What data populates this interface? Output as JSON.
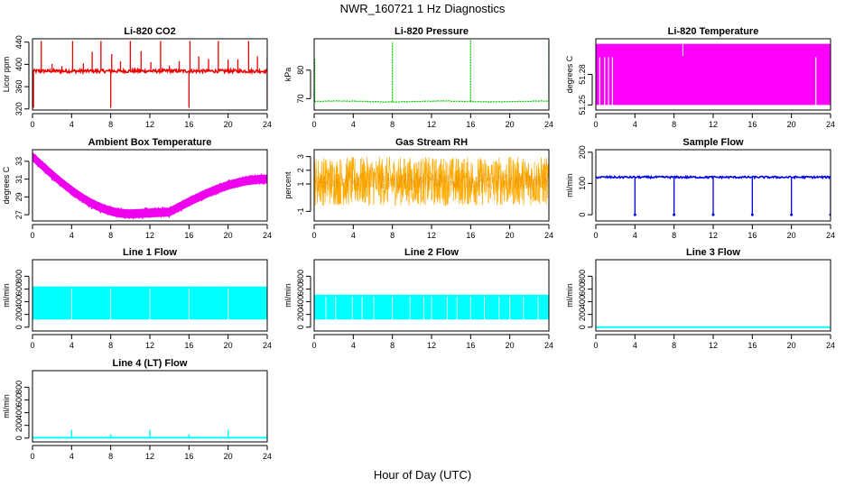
{
  "figure": {
    "title": "NWR_160721  1 Hz Diagnostics",
    "xlabel": "Hour of Day (UTC)"
  },
  "chart_data": [
    {
      "type": "line",
      "title": "Li-820 CO2",
      "ylabel": "Licor ppm",
      "color": "#ee0000",
      "xlim": [
        0,
        24
      ],
      "ylim": [
        318,
        446
      ],
      "xticks": [
        0,
        4,
        8,
        12,
        16,
        20,
        24
      ],
      "yticks": [
        320,
        360,
        400,
        440
      ],
      "series": [
        {
          "kind": "co2",
          "baseline": 388
        }
      ]
    },
    {
      "type": "line",
      "title": "Li-820 Pressure",
      "ylabel": "kPa",
      "color": "#00cc00",
      "xlim": [
        0,
        24
      ],
      "ylim": [
        66,
        91
      ],
      "xticks": [
        0,
        4,
        8,
        12,
        16,
        20,
        24
      ],
      "yticks": [
        70,
        80
      ],
      "series": [
        {
          "kind": "pressure",
          "baseline": 69
        }
      ]
    },
    {
      "type": "line",
      "title": "Li-820 Temperature",
      "ylabel": "degrees C",
      "color": "#ff00ff",
      "xlim": [
        0,
        24
      ],
      "ylim": [
        51.245,
        51.315
      ],
      "xticks": [
        0,
        4,
        8,
        12,
        16,
        20,
        24
      ],
      "yticks": [
        51.25,
        51.28
      ],
      "series": [
        {
          "kind": "temp820",
          "low": 51.25,
          "high": 51.31
        }
      ]
    },
    {
      "type": "line",
      "title": "Ambient Box Temperature",
      "ylabel": "degrees C",
      "color": "#ee00ee",
      "xlim": [
        0,
        24
      ],
      "ylim": [
        26.3,
        34.3
      ],
      "xticks": [
        0,
        4,
        8,
        12,
        16,
        20,
        24
      ],
      "yticks": [
        27,
        29,
        31,
        33
      ],
      "series": [
        {
          "kind": "ambient"
        }
      ]
    },
    {
      "type": "line",
      "title": "Gas Stream RH",
      "ylabel": "percent",
      "color": "#ffaa00",
      "xlim": [
        0,
        24
      ],
      "ylim": [
        -1.7,
        3.5
      ],
      "xticks": [
        0,
        4,
        8,
        12,
        16,
        20,
        24
      ],
      "yticks": [
        -1,
        1,
        2,
        3
      ],
      "series": [
        {
          "kind": "rh",
          "center": 1.2,
          "amplitude": 1.8
        }
      ]
    },
    {
      "type": "line",
      "title": "Sample Flow",
      "ylabel": "ml/min",
      "color": "#0000ee",
      "xlim": [
        0,
        24
      ],
      "ylim": [
        -20,
        208
      ],
      "xticks": [
        0,
        4,
        8,
        12,
        16,
        20,
        24
      ],
      "yticks": [
        0,
        100,
        200
      ],
      "series": [
        {
          "kind": "sample",
          "baseline": 120,
          "dips_at": [
            4,
            8,
            12,
            16,
            20,
            24
          ]
        }
      ]
    },
    {
      "type": "line",
      "title": "Line 1 Flow",
      "ylabel": "ml/min",
      "color": "#00ffff",
      "xlim": [
        0,
        24
      ],
      "ylim": [
        -60,
        1060
      ],
      "xticks": [
        0,
        4,
        8,
        12,
        16,
        20,
        24
      ],
      "yticks": [
        0,
        200,
        400,
        600,
        800
      ],
      "series": [
        {
          "kind": "band",
          "low": 120,
          "high": 640
        }
      ]
    },
    {
      "type": "line",
      "title": "Line 2 Flow",
      "ylabel": "ml/min",
      "color": "#00ffff",
      "xlim": [
        0,
        24
      ],
      "ylim": [
        -60,
        1060
      ],
      "xticks": [
        0,
        4,
        8,
        12,
        16,
        20,
        24
      ],
      "yticks": [
        0,
        200,
        400,
        600,
        800
      ],
      "series": [
        {
          "kind": "band",
          "low": 120,
          "high": 510
        }
      ]
    },
    {
      "type": "line",
      "title": "Line 3 Flow",
      "ylabel": "ml/min",
      "color": "#00ffff",
      "xlim": [
        0,
        24
      ],
      "ylim": [
        -60,
        1060
      ],
      "xticks": [
        0,
        4,
        8,
        12,
        16,
        20,
        24
      ],
      "yticks": [
        0,
        200,
        400,
        600,
        800
      ],
      "series": [
        {
          "kind": "flat",
          "value": 0
        }
      ]
    },
    {
      "type": "line",
      "title": "Line 4 (LT) Flow",
      "ylabel": "ml/min",
      "color": "#00ffff",
      "xlim": [
        0,
        24
      ],
      "ylim": [
        -60,
        1060
      ],
      "xticks": [
        0,
        4,
        8,
        12,
        16,
        20,
        24
      ],
      "yticks": [
        0,
        200,
        400,
        600,
        800
      ],
      "series": [
        {
          "kind": "flat_spikes",
          "value": 5,
          "spikes_at": [
            4,
            8,
            12,
            16,
            20,
            24
          ],
          "spike_heights": [
            130,
            60,
            130,
            60,
            130,
            60
          ]
        }
      ]
    }
  ]
}
